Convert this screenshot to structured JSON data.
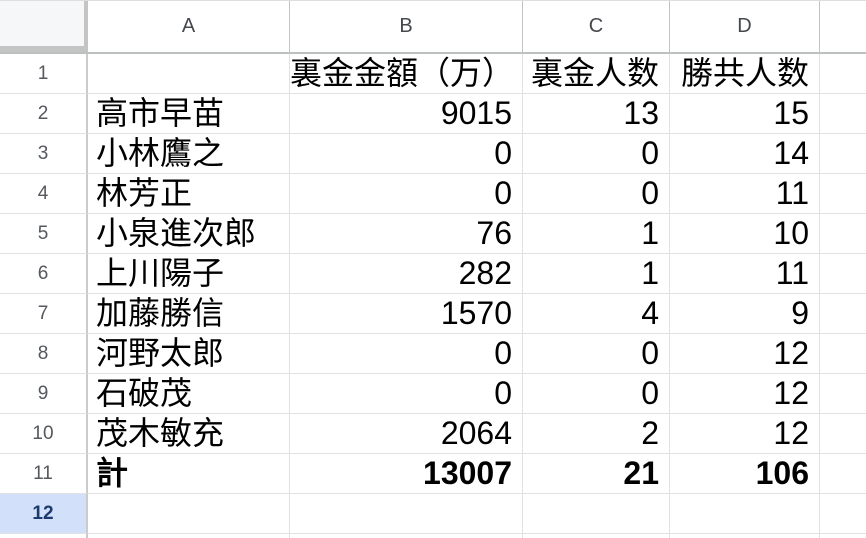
{
  "colors": {
    "selected_row_header_bg": "#d2e0f9",
    "selected_row_header_text": "#1b3a6d",
    "gridline": "#e1e1e1",
    "header_border": "#c4c4c4",
    "header_text": "#45484c"
  },
  "sheet": {
    "column_headers": [
      "A",
      "B",
      "C",
      "D"
    ],
    "selected_row": "12",
    "rows": [
      {
        "num": "1",
        "cells": [
          "",
          "裏金金額（万）",
          "裏金人数",
          "勝共人数"
        ],
        "bold": false,
        "selected": false
      },
      {
        "num": "2",
        "cells": [
          "高市早苗",
          "9015",
          "13",
          "15"
        ],
        "bold": false,
        "selected": false
      },
      {
        "num": "3",
        "cells": [
          "小林鷹之",
          "0",
          "0",
          "14"
        ],
        "bold": false,
        "selected": false
      },
      {
        "num": "4",
        "cells": [
          "林芳正",
          "0",
          "0",
          "11"
        ],
        "bold": false,
        "selected": false
      },
      {
        "num": "5",
        "cells": [
          "小泉進次郎",
          "76",
          "1",
          "10"
        ],
        "bold": false,
        "selected": false
      },
      {
        "num": "6",
        "cells": [
          "上川陽子",
          "282",
          "1",
          "11"
        ],
        "bold": false,
        "selected": false
      },
      {
        "num": "7",
        "cells": [
          "加藤勝信",
          "1570",
          "4",
          "9"
        ],
        "bold": false,
        "selected": false
      },
      {
        "num": "8",
        "cells": [
          "河野太郎",
          "0",
          "0",
          "12"
        ],
        "bold": false,
        "selected": false
      },
      {
        "num": "9",
        "cells": [
          "石破茂",
          "0",
          "0",
          "12"
        ],
        "bold": false,
        "selected": false
      },
      {
        "num": "10",
        "cells": [
          "茂木敏充",
          "2064",
          "2",
          "12"
        ],
        "bold": false,
        "selected": false
      },
      {
        "num": "11",
        "cells": [
          "計",
          "13007",
          "21",
          "106"
        ],
        "bold": true,
        "selected": false
      },
      {
        "num": "12",
        "cells": [
          "",
          "",
          "",
          ""
        ],
        "bold": false,
        "selected": true
      }
    ]
  }
}
